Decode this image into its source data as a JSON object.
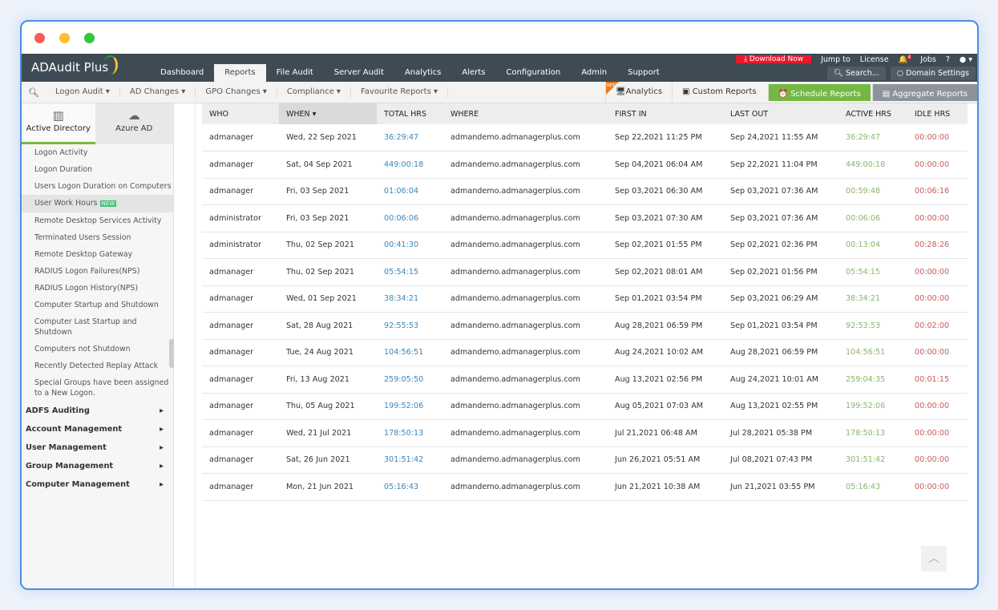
{
  "colors": {
    "header": "#3f4b54",
    "accent_green": "#74b843",
    "download": "#e8192c"
  },
  "app": {
    "name": "ADAudit Plus"
  },
  "nav": [
    "Dashboard",
    "Reports",
    "File Audit",
    "Server Audit",
    "Analytics",
    "Alerts",
    "Configuration",
    "Admin",
    "Support"
  ],
  "top": {
    "download": "Download Now",
    "jump": "Jump to",
    "license": "License",
    "bell_count": "4",
    "jobs": "Jobs",
    "help": "?",
    "search": "Search...",
    "domain": "Domain Settings"
  },
  "sub": {
    "menus": [
      "Logon Audit",
      "AD Changes",
      "GPO Changes",
      "Compliance",
      "Favourite Reports"
    ],
    "analytics": "Analytics",
    "new_badge": "NEW",
    "custom": "Custom Reports",
    "schedule": "Schedule Reports",
    "aggregate": "Aggregate Reports"
  },
  "side": {
    "tab_ad": "Active Directory",
    "tab_azure": "Azure AD",
    "new": "NEW",
    "items": [
      "Logon Activity",
      "Logon Duration",
      "Users Logon Duration on Computers",
      "User Work Hours",
      "Remote Desktop Services Activity",
      "Terminated Users Session",
      "Remote Desktop Gateway",
      "RADIUS Logon Failures(NPS)",
      "RADIUS Logon History(NPS)",
      "Computer Startup and Shutdown",
      "Computer Last Startup and Shutdown",
      "Computers not Shutdown",
      "Recently Detected Replay Attack",
      "Special Groups have been assigned to a New Logon."
    ],
    "groups": [
      "ADFS Auditing",
      "Account Management",
      "User Management",
      "Group Management",
      "Computer Management"
    ]
  },
  "table": {
    "headers": [
      "WHO",
      "WHEN",
      "TOTAL HRS",
      "WHERE",
      "FIRST IN",
      "LAST OUT",
      "ACTIVE HRS",
      "IDLE HRS"
    ],
    "rows": [
      [
        "admanager",
        "Wed, 22 Sep 2021",
        "36:29:47",
        "admandemo.admanagerplus.com",
        "Sep 22,2021 11:25 PM",
        "Sep 24,2021 11:55 AM",
        "36:29:47",
        "00:00:00"
      ],
      [
        "admanager",
        "Sat, 04 Sep 2021",
        "449:00:18",
        "admandemo.admanagerplus.com",
        "Sep 04,2021 06:04 AM",
        "Sep 22,2021 11:04 PM",
        "449:00:18",
        "00:00:00"
      ],
      [
        "admanager",
        "Fri, 03 Sep 2021",
        "01:06:04",
        "admandemo.admanagerplus.com",
        "Sep 03,2021 06:30 AM",
        "Sep 03,2021 07:36 AM",
        "00:59:48",
        "00:06:16"
      ],
      [
        "administrator",
        "Fri, 03 Sep 2021",
        "00:06:06",
        "admandemo.admanagerplus.com",
        "Sep 03,2021 07:30 AM",
        "Sep 03,2021 07:36 AM",
        "00:06:06",
        "00:00:00"
      ],
      [
        "administrator",
        "Thu, 02 Sep 2021",
        "00:41:30",
        "admandemo.admanagerplus.com",
        "Sep 02,2021 01:55 PM",
        "Sep 02,2021 02:36 PM",
        "00:13:04",
        "00:28:26"
      ],
      [
        "admanager",
        "Thu, 02 Sep 2021",
        "05:54:15",
        "admandemo.admanagerplus.com",
        "Sep 02,2021 08:01 AM",
        "Sep 02,2021 01:56 PM",
        "05:54:15",
        "00:00:00"
      ],
      [
        "admanager",
        "Wed, 01 Sep 2021",
        "38:34:21",
        "admandemo.admanagerplus.com",
        "Sep 01,2021 03:54 PM",
        "Sep 03,2021 06:29 AM",
        "38:34:21",
        "00:00:00"
      ],
      [
        "admanager",
        "Sat, 28 Aug 2021",
        "92:55:53",
        "admandemo.admanagerplus.com",
        "Aug 28,2021 06:59 PM",
        "Sep 01,2021 03:54 PM",
        "92:53:53",
        "00:02:00"
      ],
      [
        "admanager",
        "Tue, 24 Aug 2021",
        "104:56:51",
        "admandemo.admanagerplus.com",
        "Aug 24,2021 10:02 AM",
        "Aug 28,2021 06:59 PM",
        "104:56:51",
        "00:00:00"
      ],
      [
        "admanager",
        "Fri, 13 Aug 2021",
        "259:05:50",
        "admandemo.admanagerplus.com",
        "Aug 13,2021 02:56 PM",
        "Aug 24,2021 10:01 AM",
        "259:04:35",
        "00:01:15"
      ],
      [
        "admanager",
        "Thu, 05 Aug 2021",
        "199:52:06",
        "admandemo.admanagerplus.com",
        "Aug 05,2021 07:03 AM",
        "Aug 13,2021 02:55 PM",
        "199:52:06",
        "00:00:00"
      ],
      [
        "admanager",
        "Wed, 21 Jul 2021",
        "178:50:13",
        "admandemo.admanagerplus.com",
        "Jul 21,2021 06:48 AM",
        "Jul 28,2021 05:38 PM",
        "178:50:13",
        "00:00:00"
      ],
      [
        "admanager",
        "Sat, 26 Jun 2021",
        "301:51:42",
        "admandemo.admanagerplus.com",
        "Jun 26,2021 05:51 AM",
        "Jul 08,2021 07:43 PM",
        "301:51:42",
        "00:00:00"
      ],
      [
        "admanager",
        "Mon, 21 Jun 2021",
        "05:16:43",
        "admandemo.admanagerplus.com",
        "Jun 21,2021 10:38 AM",
        "Jun 21,2021 03:55 PM",
        "05:16:43",
        "00:00:00"
      ]
    ]
  }
}
